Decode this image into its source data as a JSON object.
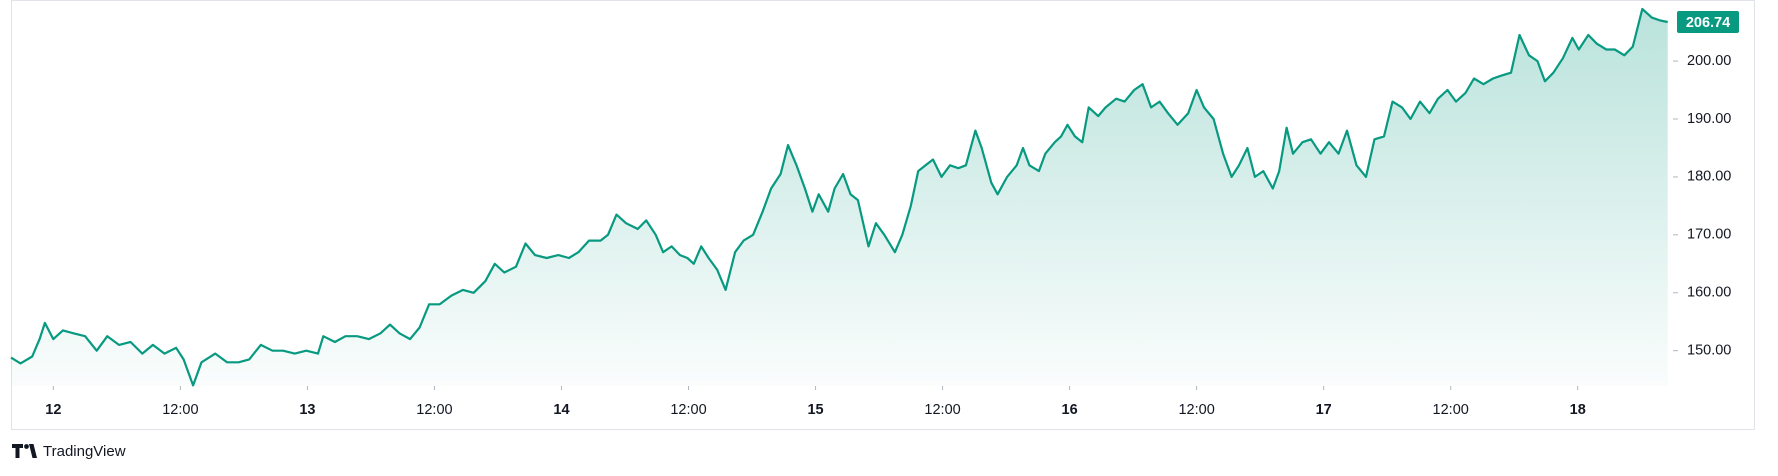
{
  "chart_data": {
    "type": "area",
    "source": "TradingView",
    "xlim": [
      -4.0,
      153.0
    ],
    "ylim": [
      143.9,
      210.2
    ],
    "xticks": [
      {
        "value": 0,
        "label": "12"
      },
      {
        "value": 12,
        "label": "12:00"
      },
      {
        "value": 24,
        "label": "13"
      },
      {
        "value": 36,
        "label": "12:00"
      },
      {
        "value": 48,
        "label": "14"
      },
      {
        "value": 60,
        "label": "12:00"
      },
      {
        "value": 72,
        "label": "15"
      },
      {
        "value": 84,
        "label": "12:00"
      },
      {
        "value": 96,
        "label": "16"
      },
      {
        "value": 108,
        "label": "12:00"
      },
      {
        "value": 120,
        "label": "17"
      },
      {
        "value": 132,
        "label": "12:00"
      },
      {
        "value": 144,
        "label": "18"
      }
    ],
    "yticks": [
      {
        "value": 150,
        "label": "150.00"
      },
      {
        "value": 160,
        "label": "160.00"
      },
      {
        "value": 170,
        "label": "170.00"
      },
      {
        "value": 180,
        "label": "180.00"
      },
      {
        "value": 190,
        "label": "190.00"
      },
      {
        "value": 200,
        "label": "200.00"
      }
    ],
    "series": [
      {
        "color": "#089981",
        "x": [
          -4.0,
          -3.1,
          -2.0,
          -1.3,
          -0.8,
          0,
          0.9,
          1.9,
          3.0,
          4.1,
          5.1,
          6.2,
          7.3,
          8.4,
          9.4,
          10.5,
          11.6,
          12.3,
          13.2,
          14.0,
          15.3,
          16.4,
          17.5,
          18.5,
          19.6,
          20.7,
          21.7,
          22.8,
          23.9,
          25.0,
          25.5,
          26.6,
          27.6,
          28.7,
          29.8,
          30.9,
          31.8,
          32.7,
          33.7,
          34.6,
          35.5,
          36.5,
          37.6,
          38.7,
          39.7,
          40.8,
          41.7,
          42.6,
          43.7,
          44.6,
          45.5,
          46.6,
          47.7,
          48.7,
          49.6,
          50.6,
          51.7,
          52.4,
          53.2,
          54.1,
          55.2,
          56.0,
          56.9,
          57.6,
          58.4,
          59.2,
          59.9,
          60.5,
          61.2,
          61.9,
          62.7,
          63.5,
          64.4,
          65.2,
          66.1,
          67.0,
          67.8,
          68.7,
          69.4,
          70.2,
          71.0,
          71.7,
          72.3,
          73.2,
          73.8,
          74.6,
          75.3,
          76.0,
          77.0,
          77.7,
          78.5,
          79.5,
          80.2,
          81.0,
          81.7,
          82.4,
          83.1,
          83.9,
          84.7,
          85.5,
          86.2,
          87.1,
          87.7,
          88.6,
          89.2,
          90.1,
          91.0,
          91.6,
          92.2,
          93.1,
          93.7,
          94.6,
          95.2,
          95.8,
          96.5,
          97.2,
          97.8,
          98.7,
          99.4,
          100.4,
          101.2,
          102.1,
          102.9,
          103.7,
          104.5,
          105.3,
          106.2,
          107.2,
          108.0,
          108.7,
          109.6,
          110.5,
          111.3,
          112.0,
          112.8,
          113.5,
          114.3,
          115.2,
          115.8,
          116.5,
          117.1,
          118.0,
          118.8,
          119.7,
          120.5,
          121.4,
          122.2,
          123.1,
          124.0,
          124.8,
          125.7,
          126.5,
          127.4,
          128.2,
          129.1,
          130.0,
          130.8,
          131.7,
          132.5,
          133.4,
          134.2,
          135.1,
          136.0,
          136.8,
          137.7,
          138.5,
          139.4,
          140.2,
          140.9,
          141.7,
          142.6,
          143.5,
          144.1,
          145.0,
          145.8,
          146.7,
          147.5,
          148.4,
          149.2,
          150.1,
          151.0,
          151.8,
          152.5
        ],
        "values": [
          148.8,
          147.8,
          149,
          152,
          154.8,
          152,
          153.5,
          153,
          152.5,
          150,
          152.5,
          151,
          151.5,
          149.5,
          151,
          149.5,
          150.5,
          148.5,
          144,
          148,
          149.5,
          148,
          148,
          148.5,
          151,
          150,
          150,
          149.5,
          150,
          149.5,
          152.5,
          151.5,
          152.5,
          152.5,
          152,
          153,
          154.5,
          153,
          152,
          154,
          158,
          158,
          159.5,
          160.5,
          160,
          162,
          165,
          163.5,
          164.5,
          168.5,
          166.5,
          166,
          166.5,
          166,
          167,
          169,
          169,
          170,
          173.5,
          172,
          171,
          172.5,
          170,
          167,
          168,
          166.5,
          166,
          165,
          168,
          166,
          164,
          160.5,
          167,
          169,
          170,
          174,
          178,
          180.5,
          185.5,
          182,
          178,
          174,
          177,
          174,
          178,
          180.5,
          177,
          176,
          168,
          172,
          170,
          167,
          170,
          175,
          181,
          182,
          183,
          180,
          182,
          181.5,
          182,
          188,
          185,
          179,
          177,
          180,
          182,
          185,
          182,
          181,
          184,
          186,
          187,
          189,
          187,
          186,
          192,
          190.5,
          192,
          193.5,
          193,
          195,
          196,
          192,
          193,
          191,
          189,
          191,
          195,
          192,
          190,
          184,
          180,
          182,
          185,
          180,
          181,
          178,
          181,
          188.5,
          184,
          186,
          186.5,
          184,
          186,
          184,
          188,
          182,
          180,
          186.5,
          187,
          193,
          192,
          190,
          193,
          191,
          193.5,
          195,
          193,
          194.5,
          197,
          196,
          197,
          197.5,
          198,
          204.5,
          201,
          200,
          196.5,
          198,
          200.5,
          204,
          202,
          204.5,
          203,
          202,
          202,
          201,
          202.5,
          209,
          207.5,
          207,
          206.74
        ]
      }
    ]
  }
}
